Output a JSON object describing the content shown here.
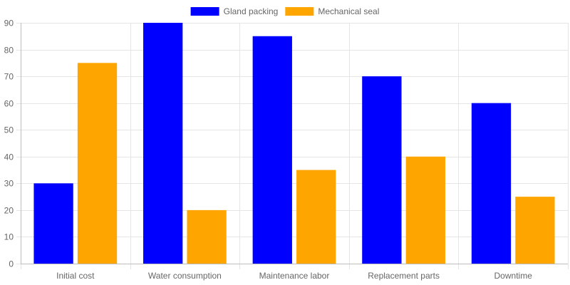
{
  "chart_data": {
    "type": "bar",
    "categories": [
      "Initial cost",
      "Water consumption",
      "Maintenance labor",
      "Replacement parts",
      "Downtime"
    ],
    "series": [
      {
        "name": "Gland packing",
        "color": "#0000ff",
        "values": [
          30,
          90,
          85,
          70,
          60
        ]
      },
      {
        "name": "Mechanical seal",
        "color": "#ffa500",
        "values": [
          75,
          20,
          35,
          40,
          25
        ]
      }
    ],
    "ylim": [
      0,
      90
    ],
    "yticks": [
      0,
      10,
      20,
      30,
      40,
      50,
      60,
      70,
      80,
      90
    ],
    "grid": true,
    "legend_position": "top-center"
  }
}
